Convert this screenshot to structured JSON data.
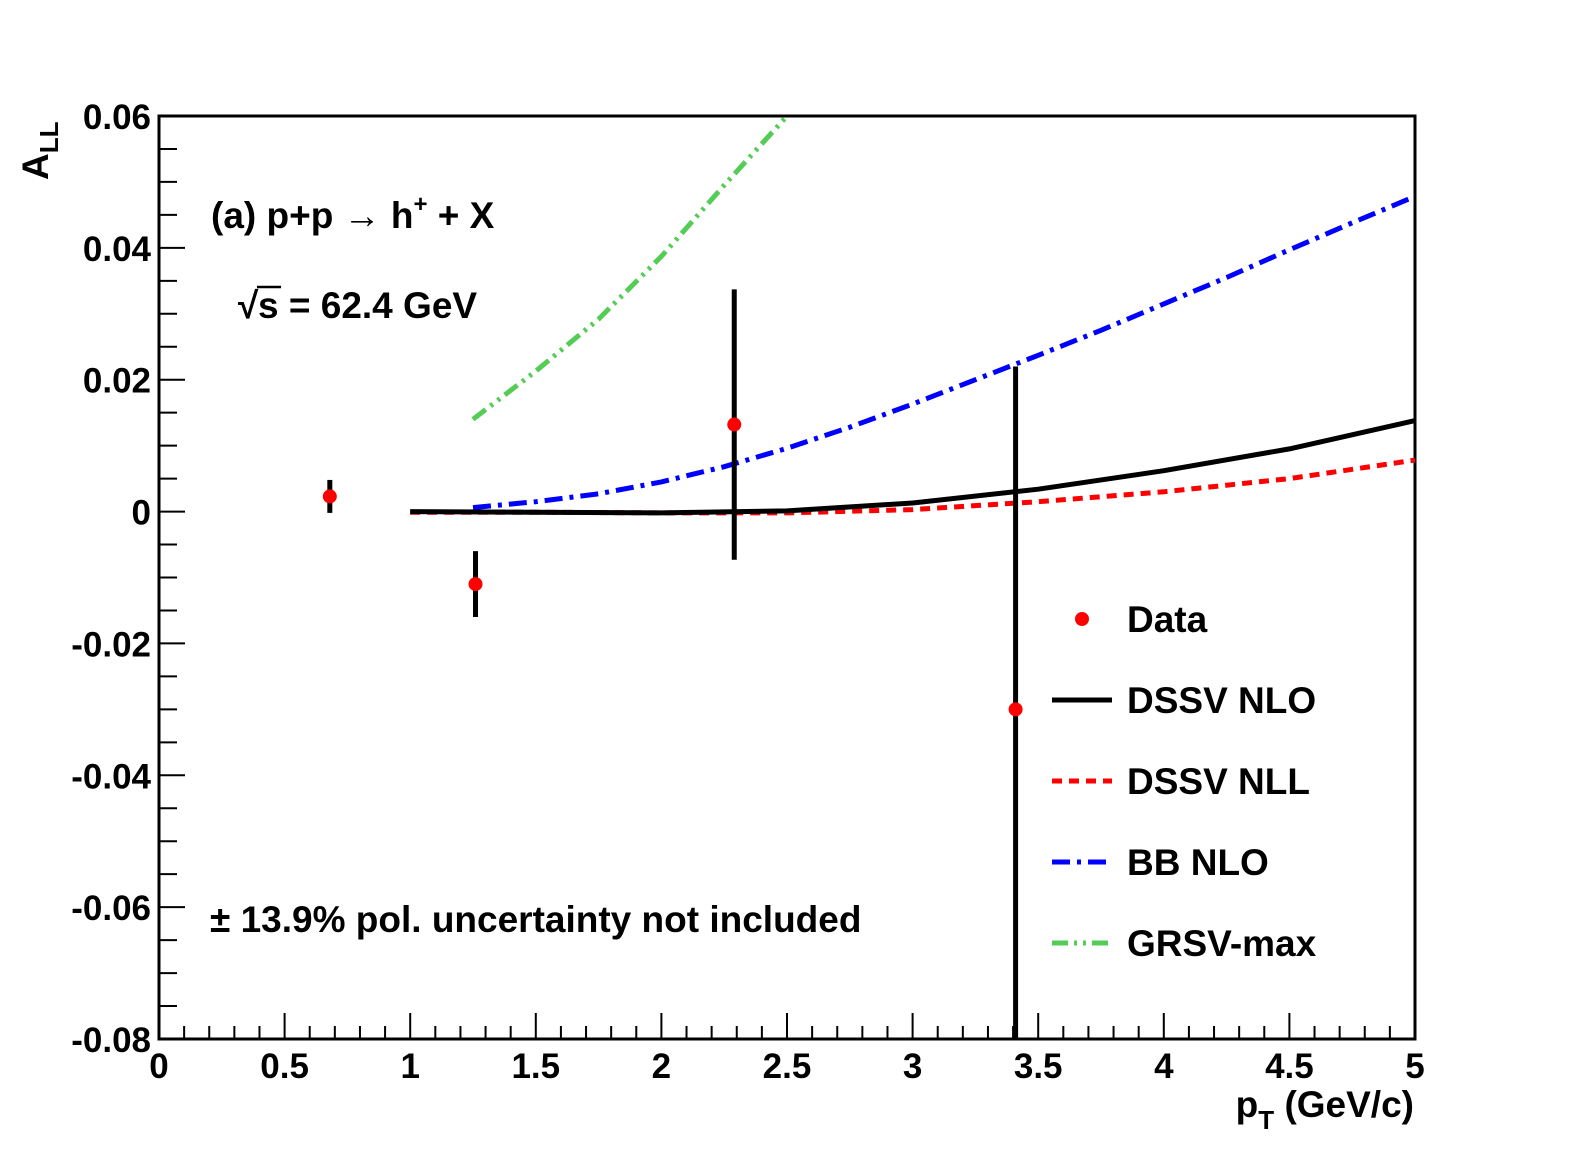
{
  "chart_data": {
    "type": "scatter",
    "title": "",
    "xlabel": {
      "main": "p",
      "sub": "T",
      "unit": " (GeV/c)"
    },
    "ylabel": {
      "main": "A",
      "sub": "LL"
    },
    "xlim": [
      0,
      5
    ],
    "ylim": [
      -0.08,
      0.06
    ],
    "x_ticks": [
      0,
      0.5,
      1,
      1.5,
      2,
      2.5,
      3,
      3.5,
      4,
      4.5,
      5
    ],
    "x_tick_labels": [
      "0",
      "0.5",
      "1",
      "1.5",
      "2",
      "2.5",
      "3",
      "3.5",
      "4",
      "4.5",
      "5"
    ],
    "y_ticks": [
      -0.08,
      -0.06,
      -0.04,
      -0.02,
      0,
      0.02,
      0.04,
      0.06
    ],
    "y_tick_labels": [
      "-0.08",
      "-0.06",
      "-0.04",
      "-0.02",
      "0",
      "0.02",
      "0.04",
      "0.06"
    ],
    "grid": false,
    "legend_position": "right",
    "annotations": {
      "reaction": {
        "prefix": "(a) p+p ",
        "arrow": "→",
        "particle": " h",
        "sup": "+",
        "suffix": " + X"
      },
      "energy": {
        "root": "√",
        "text": "s = 62.4 GeV"
      },
      "uncertainty": "± 13.9% pol. uncertainty not included"
    },
    "data_points": {
      "name": "Data",
      "color": "#ff0000",
      "points": [
        {
          "x": 0.68,
          "y": 0.0023,
          "err": 0.0025
        },
        {
          "x": 1.26,
          "y": -0.011,
          "err": 0.005
        },
        {
          "x": 2.29,
          "y": 0.0132,
          "err": 0.0205
        },
        {
          "x": 3.41,
          "y": -0.03,
          "err": 0.052
        }
      ]
    },
    "series": [
      {
        "name": "DSSV NLO",
        "color": "#000000",
        "style": "solid",
        "x": [
          1.0,
          1.5,
          2.0,
          2.5,
          3.0,
          3.5,
          4.0,
          4.5,
          5.0
        ],
        "y": [
          0.0,
          -0.0001,
          -0.0002,
          0.0001,
          0.0013,
          0.0034,
          0.0062,
          0.0095,
          0.0138
        ]
      },
      {
        "name": "DSSV NLL",
        "color": "#ff0000",
        "style": "dotted",
        "x": [
          1.0,
          1.5,
          2.0,
          2.5,
          3.0,
          3.5,
          4.0,
          4.5,
          5.0
        ],
        "y": [
          -0.0001,
          -0.0001,
          -0.0002,
          -0.0002,
          0.0003,
          0.0015,
          0.003,
          0.005,
          0.0078
        ]
      },
      {
        "name": "BB NLO",
        "color": "#0000ff",
        "style": "dashdot",
        "x": [
          1.25,
          1.5,
          1.75,
          2.0,
          2.25,
          2.5,
          2.75,
          3.0,
          3.25,
          3.5,
          3.75,
          4.0,
          4.25,
          4.5,
          4.75,
          5.0
        ],
        "y": [
          0.0006,
          0.0015,
          0.0027,
          0.0045,
          0.0068,
          0.0096,
          0.0128,
          0.0163,
          0.02,
          0.0237,
          0.0275,
          0.0315,
          0.0355,
          0.0397,
          0.0438,
          0.0478
        ]
      },
      {
        "name": "GRSV-max",
        "color": "#55cc55",
        "style": "dashdotdot",
        "x": [
          1.25,
          1.5,
          1.75,
          2.0,
          2.25,
          2.5
        ],
        "y": [
          0.014,
          0.0213,
          0.0292,
          0.0387,
          0.0495,
          0.06
        ]
      }
    ]
  }
}
